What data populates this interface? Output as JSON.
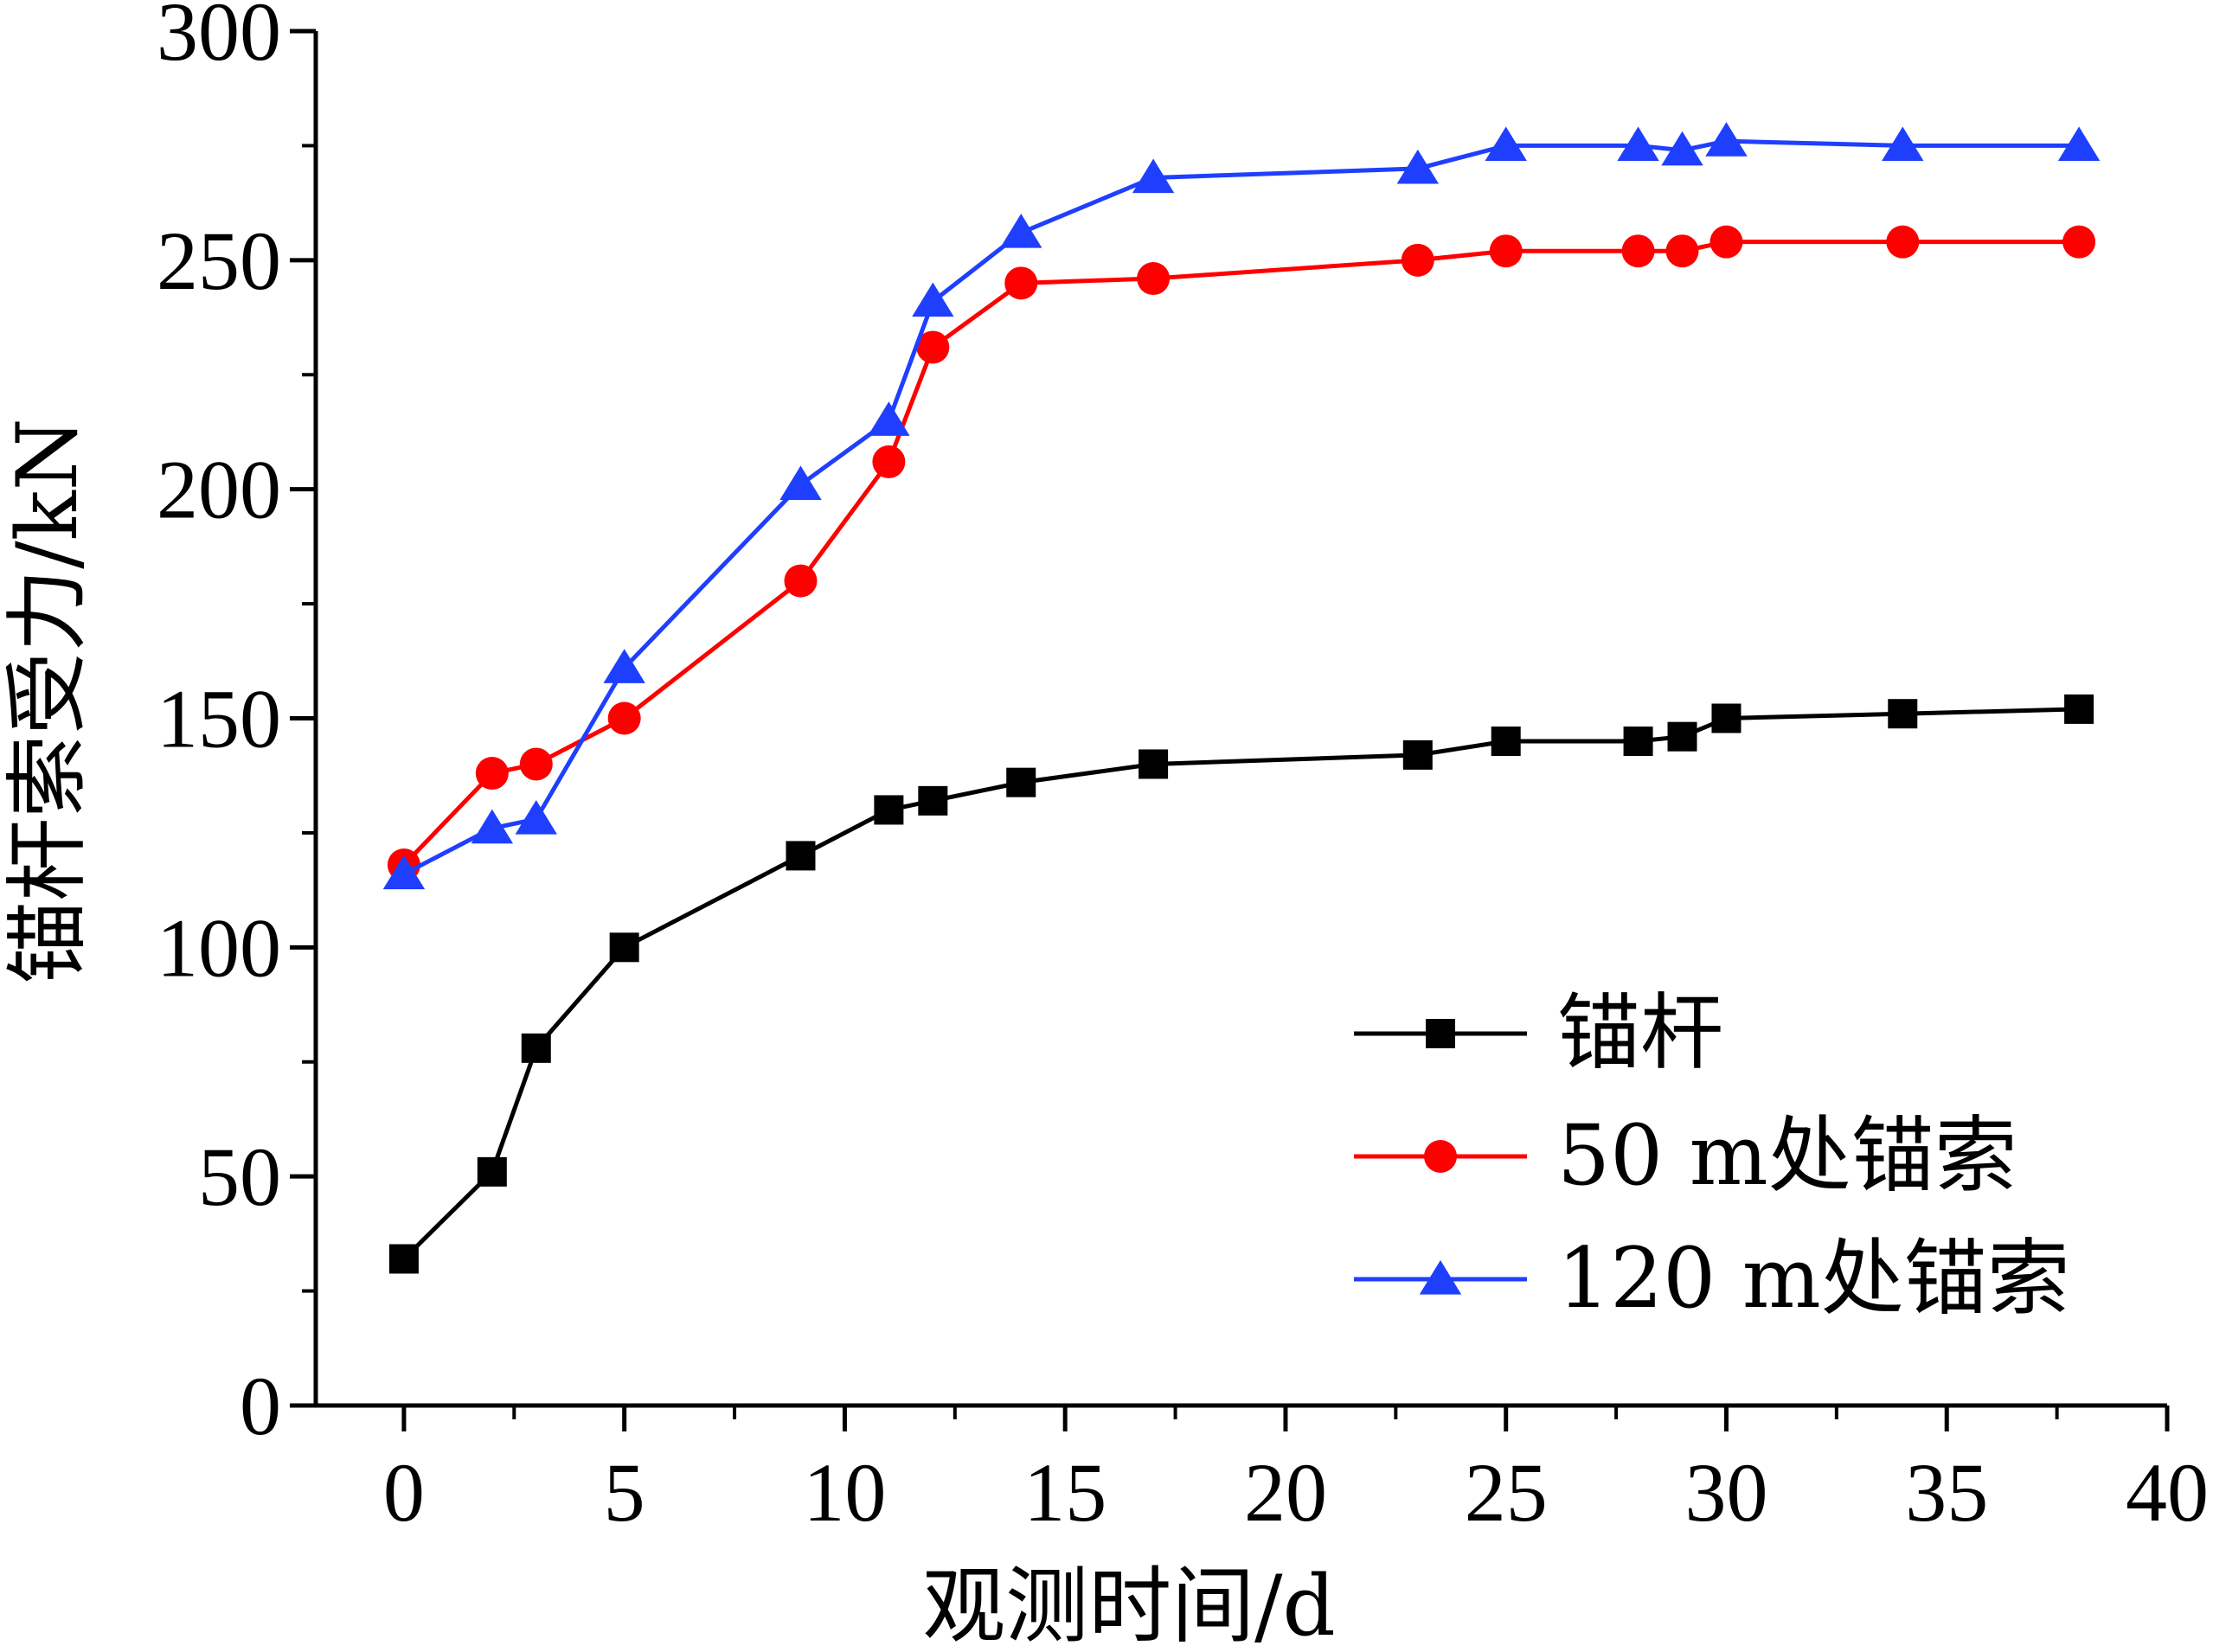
{
  "chart_data": {
    "type": "line",
    "title": "",
    "xlabel": "观测时间/d",
    "ylabel": "锚杆索受力/kN",
    "xlim": [
      -2,
      40
    ],
    "ylim": [
      0,
      300
    ],
    "xticks": [
      0,
      5,
      10,
      15,
      20,
      25,
      30,
      35,
      40
    ],
    "yticks": [
      0,
      50,
      100,
      150,
      200,
      250,
      300
    ],
    "grid": false,
    "legend_position": "bottom-right",
    "series": [
      {
        "name": "锚杆",
        "marker": "square",
        "color": "#000000",
        "x": [
          0,
          2,
          3,
          5,
          9,
          11,
          12,
          14,
          17,
          23,
          25,
          28,
          29,
          30,
          34,
          38
        ],
        "y": [
          32,
          51,
          78,
          100,
          120,
          130,
          132,
          136,
          140,
          142,
          145,
          145,
          146,
          150,
          151,
          152
        ]
      },
      {
        "name": "50 m处锚索",
        "marker": "circle",
        "color": "#ff0000",
        "x": [
          0,
          2,
          3,
          5,
          9,
          11,
          12,
          14,
          17,
          23,
          25,
          28,
          29,
          30,
          34,
          38
        ],
        "y": [
          118,
          138,
          140,
          150,
          180,
          206,
          231,
          245,
          246,
          250,
          252,
          252,
          252,
          254,
          254,
          254
        ]
      },
      {
        "name": "120 m处锚索",
        "marker": "triangle",
        "color": "#1f3fff",
        "x": [
          0,
          2,
          3,
          5,
          9,
          11,
          12,
          14,
          17,
          23,
          25,
          28,
          29,
          30,
          34,
          38
        ],
        "y": [
          116,
          126,
          128,
          161,
          201,
          215,
          241,
          256,
          268,
          270,
          275,
          275,
          274,
          276,
          275,
          275
        ]
      }
    ]
  }
}
